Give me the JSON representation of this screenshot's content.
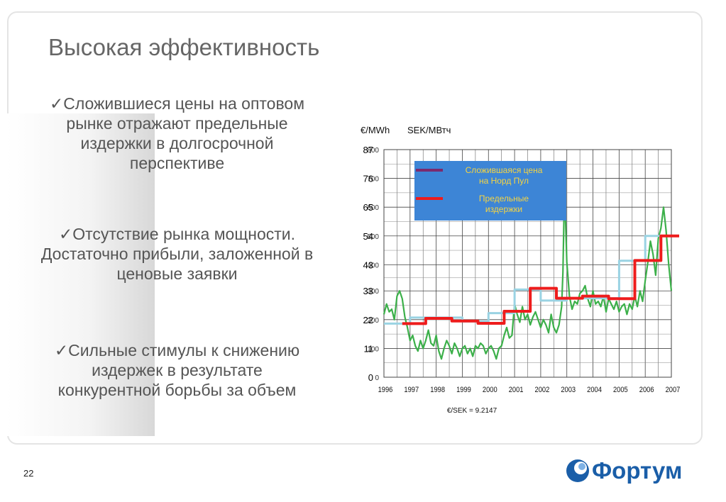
{
  "slide": {
    "title": "Высокая эффективность",
    "bullets": [
      {
        "lines": [
          "✓Сложившиеся цены на оптовом",
          "рынке отражают предельные",
          "издержки в долгосрочной",
          "перспективе"
        ]
      },
      {
        "lines": [
          "✓Отсутствие рынка мощности.",
          "Достаточно прибыли, заложенной в",
          "ценовые заявки"
        ]
      },
      {
        "lines": [
          "✓Сильные стимулы к снижению",
          "издержек в результате",
          "конкурентной борьбы за объем"
        ]
      }
    ],
    "page_number": "22",
    "logo_text": "Фортум"
  },
  "chart_data": {
    "type": "line",
    "title": "",
    "unit_left": "€/MWh",
    "unit_right": "SEK/MВтч",
    "footnote": "€/SEK = 9.2147",
    "x_ticks": [
      "1996",
      "1997",
      "1998",
      "1999",
      "2000",
      "2001",
      "2002",
      "2003",
      "2004",
      "2005",
      "2006",
      "2007"
    ],
    "xlim": [
      1996,
      2007.3
    ],
    "ylim": [
      0,
      87
    ],
    "y_ticks_eur": [
      "0",
      "11",
      "22",
      "33",
      "43",
      "54",
      "65",
      "76",
      "87"
    ],
    "y_ticks_sek": [
      "0",
      "100",
      "200",
      "300",
      "400",
      "500",
      "600",
      "700",
      "800"
    ],
    "grid": true,
    "legend": {
      "placement": "top-center",
      "background": "#3d85d6",
      "entries": [
        {
          "label_lines": [
            "Сложившаяся цена",
            "на Норд Пул"
          ],
          "color": "#7b2a6e"
        },
        {
          "label_lines": [
            "Предельные",
            "издержки"
          ],
          "color": "#ee1c1c"
        }
      ]
    },
    "series": [
      {
        "name": "Сложившаяся цена на Норд Пул",
        "color": "#3cb04a",
        "x": [
          1996.0,
          1996.1,
          1996.2,
          1996.3,
          1996.4,
          1996.5,
          1996.6,
          1996.7,
          1996.8,
          1996.9,
          1997.0,
          1997.1,
          1997.2,
          1997.3,
          1997.4,
          1997.5,
          1997.6,
          1997.7,
          1997.8,
          1997.9,
          1998.0,
          1998.1,
          1998.2,
          1998.3,
          1998.4,
          1998.5,
          1998.6,
          1998.7,
          1998.8,
          1998.9,
          1999.0,
          1999.1,
          1999.2,
          1999.3,
          1999.4,
          1999.5,
          1999.6,
          1999.7,
          1999.8,
          1999.9,
          2000.0,
          2000.1,
          2000.2,
          2000.3,
          2000.4,
          2000.5,
          2000.6,
          2000.7,
          2000.8,
          2000.9,
          2001.0,
          2001.1,
          2001.2,
          2001.3,
          2001.4,
          2001.5,
          2001.6,
          2001.7,
          2001.8,
          2001.9,
          2002.0,
          2002.1,
          2002.2,
          2002.3,
          2002.4,
          2002.5,
          2002.6,
          2002.7,
          2002.8,
          2002.85,
          2002.9,
          2002.95,
          2003.0,
          2003.1,
          2003.2,
          2003.3,
          2003.4,
          2003.5,
          2003.6,
          2003.7,
          2003.8,
          2003.9,
          2004.0,
          2004.1,
          2004.2,
          2004.3,
          2004.4,
          2004.5,
          2004.6,
          2004.7,
          2004.8,
          2004.9,
          2005.0,
          2005.1,
          2005.2,
          2005.3,
          2005.4,
          2005.5,
          2005.6,
          2005.7,
          2005.8,
          2005.9,
          2006.0,
          2006.1,
          2006.2,
          2006.3,
          2006.4,
          2006.5,
          2006.6,
          2006.7,
          2006.8,
          2006.9,
          2007.0
        ],
        "y": [
          24,
          28,
          25,
          26,
          22,
          31,
          33,
          30,
          23,
          19,
          14,
          16,
          12,
          10,
          14,
          11,
          14,
          18,
          13,
          12,
          16,
          10,
          7,
          11,
          14,
          12,
          9,
          13,
          11,
          8,
          11,
          12,
          9,
          11,
          8,
          12,
          11,
          13,
          12,
          9,
          11,
          12,
          10,
          7,
          11,
          12,
          16,
          19,
          15,
          16,
          28,
          24,
          21,
          27,
          22,
          24,
          20,
          23,
          25,
          22,
          19,
          22,
          20,
          17,
          24,
          19,
          17,
          20,
          27,
          40,
          66,
          60,
          44,
          31,
          26,
          29,
          28,
          32,
          33,
          35,
          30,
          27,
          33,
          28,
          29,
          27,
          31,
          25,
          30,
          28,
          26,
          29,
          25,
          27,
          28,
          24,
          28,
          26,
          31,
          27,
          33,
          29,
          37,
          44,
          52,
          47,
          39,
          53,
          57,
          65,
          56,
          43,
          33
        ]
      },
      {
        "name": "",
        "color": "#9ad3e3",
        "x": [
          1996.0,
          1997.0,
          1997.0,
          1999.0,
          1999.0,
          2000.0,
          2000.0,
          2001.0,
          2001.0,
          2002.0,
          2002.0,
          2003.0,
          2003.0,
          2005.0,
          2005.0,
          2006.0,
          2006.0,
          2007.0
        ],
        "y": [
          20.5,
          20.5,
          22.8,
          22.8,
          21.3,
          21.3,
          24.5,
          24.5,
          33.5,
          33.5,
          29.3,
          29.3,
          30.2,
          30.2,
          44.5,
          44.5,
          54,
          54
        ]
      },
      {
        "name": "Предельные издержки",
        "color": "#ee1c1c",
        "x": [
          1996.7,
          1997.6,
          1997.6,
          1998.6,
          1998.6,
          1999.6,
          1999.6,
          2000.6,
          2000.6,
          2001.6,
          2001.6,
          2002.6,
          2002.6,
          2003.6,
          2003.6,
          2004.6,
          2004.6,
          2005.6,
          2005.6,
          2006.6,
          2006.6,
          2007.3
        ],
        "y": [
          20.5,
          20.5,
          22.5,
          22.5,
          21.5,
          21.5,
          20.6,
          20.6,
          25.2,
          25.2,
          34,
          34,
          30.2,
          30.2,
          31,
          31,
          30,
          30,
          44.6,
          44.6,
          54,
          54
        ]
      }
    ]
  }
}
